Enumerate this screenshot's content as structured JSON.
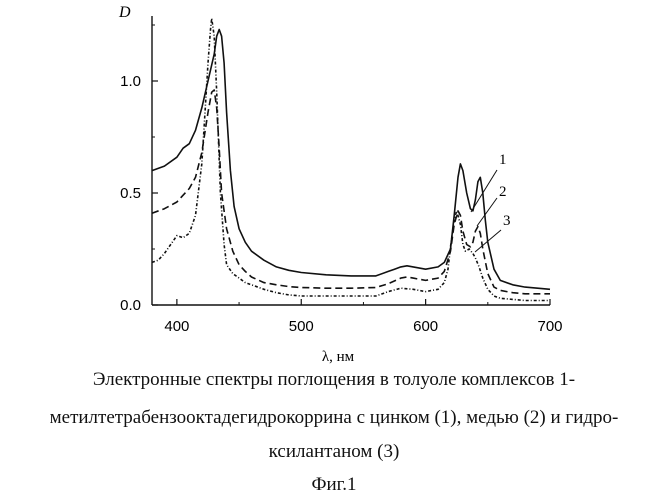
{
  "chart_data": {
    "type": "line",
    "ylabel": "D",
    "xlabel": "λ, нм",
    "xlim": [
      380,
      700
    ],
    "ylim": [
      0.0,
      1.3
    ],
    "xticks": [
      400,
      500,
      600,
      700
    ],
    "xtick_labels": [
      "400",
      "500",
      "600",
      "700"
    ],
    "yticks": [
      0.0,
      0.5,
      1.0
    ],
    "ytick_labels": [
      "0.0",
      "0.5",
      "1.0"
    ],
    "grid": false,
    "series": [
      {
        "name": "1",
        "style": "solid",
        "x": [
          380,
          390,
          400,
          405,
          410,
          415,
          420,
          425,
          430,
          432,
          434,
          436,
          438,
          440,
          443,
          446,
          450,
          455,
          460,
          470,
          480,
          490,
          500,
          520,
          540,
          560,
          570,
          575,
          580,
          585,
          590,
          600,
          610,
          615,
          620,
          623,
          626,
          628,
          630,
          633,
          636,
          638,
          640,
          642,
          644,
          646,
          648,
          650,
          655,
          660,
          670,
          680,
          690,
          700
        ],
        "y": [
          0.6,
          0.62,
          0.66,
          0.7,
          0.72,
          0.78,
          0.88,
          1.0,
          1.12,
          1.2,
          1.23,
          1.2,
          1.08,
          0.86,
          0.6,
          0.44,
          0.34,
          0.28,
          0.24,
          0.2,
          0.17,
          0.155,
          0.145,
          0.135,
          0.13,
          0.13,
          0.15,
          0.16,
          0.17,
          0.175,
          0.17,
          0.16,
          0.17,
          0.19,
          0.25,
          0.4,
          0.57,
          0.63,
          0.6,
          0.5,
          0.43,
          0.42,
          0.47,
          0.55,
          0.57,
          0.5,
          0.38,
          0.28,
          0.16,
          0.11,
          0.09,
          0.08,
          0.075,
          0.07
        ]
      },
      {
        "name": "2",
        "style": "dashed",
        "x": [
          380,
          390,
          400,
          405,
          410,
          415,
          420,
          425,
          428,
          430,
          432,
          434,
          436,
          440,
          445,
          450,
          455,
          460,
          470,
          480,
          490,
          500,
          520,
          540,
          560,
          570,
          580,
          585,
          590,
          600,
          610,
          615,
          620,
          623,
          626,
          628,
          630,
          633,
          636,
          638,
          640,
          642,
          644,
          646,
          650,
          655,
          660,
          670,
          680,
          690,
          700
        ],
        "y": [
          0.41,
          0.43,
          0.46,
          0.49,
          0.52,
          0.57,
          0.68,
          0.86,
          0.95,
          0.96,
          0.88,
          0.7,
          0.5,
          0.34,
          0.24,
          0.18,
          0.15,
          0.125,
          0.1,
          0.09,
          0.082,
          0.078,
          0.075,
          0.075,
          0.078,
          0.095,
          0.12,
          0.125,
          0.12,
          0.11,
          0.12,
          0.15,
          0.24,
          0.36,
          0.42,
          0.4,
          0.33,
          0.27,
          0.26,
          0.28,
          0.33,
          0.35,
          0.32,
          0.25,
          0.14,
          0.08,
          0.065,
          0.055,
          0.05,
          0.05,
          0.05
        ]
      },
      {
        "name": "3",
        "style": "dash-dot",
        "x": [
          380,
          385,
          390,
          395,
          400,
          405,
          410,
          415,
          420,
          422,
          425,
          427,
          428,
          430,
          432,
          435,
          438,
          440,
          445,
          450,
          455,
          460,
          470,
          480,
          490,
          500,
          520,
          540,
          560,
          570,
          580,
          590,
          600,
          610,
          615,
          618,
          620,
          623,
          625,
          628,
          630,
          632,
          635,
          638,
          640,
          643,
          646,
          650,
          655,
          660,
          670,
          680,
          690,
          700
        ],
        "y": [
          0.19,
          0.2,
          0.23,
          0.27,
          0.31,
          0.3,
          0.32,
          0.4,
          0.63,
          0.8,
          1.08,
          1.23,
          1.28,
          1.2,
          0.95,
          0.5,
          0.27,
          0.18,
          0.14,
          0.12,
          0.1,
          0.09,
          0.07,
          0.055,
          0.045,
          0.04,
          0.04,
          0.04,
          0.04,
          0.06,
          0.075,
          0.07,
          0.06,
          0.07,
          0.1,
          0.16,
          0.26,
          0.38,
          0.42,
          0.36,
          0.27,
          0.24,
          0.25,
          0.23,
          0.21,
          0.17,
          0.12,
          0.07,
          0.04,
          0.03,
          0.025,
          0.02,
          0.02,
          0.02
        ]
      }
    ]
  },
  "caption": {
    "line1": "Электронные спектры поглощения в толуоле комплексов 1-",
    "line2": "метилтетрабензооктадегидрокоррина с цинком (1), медью (2) и гидро-",
    "line3": "ксилантаном (3)",
    "figure_label": "Фиг.1"
  }
}
